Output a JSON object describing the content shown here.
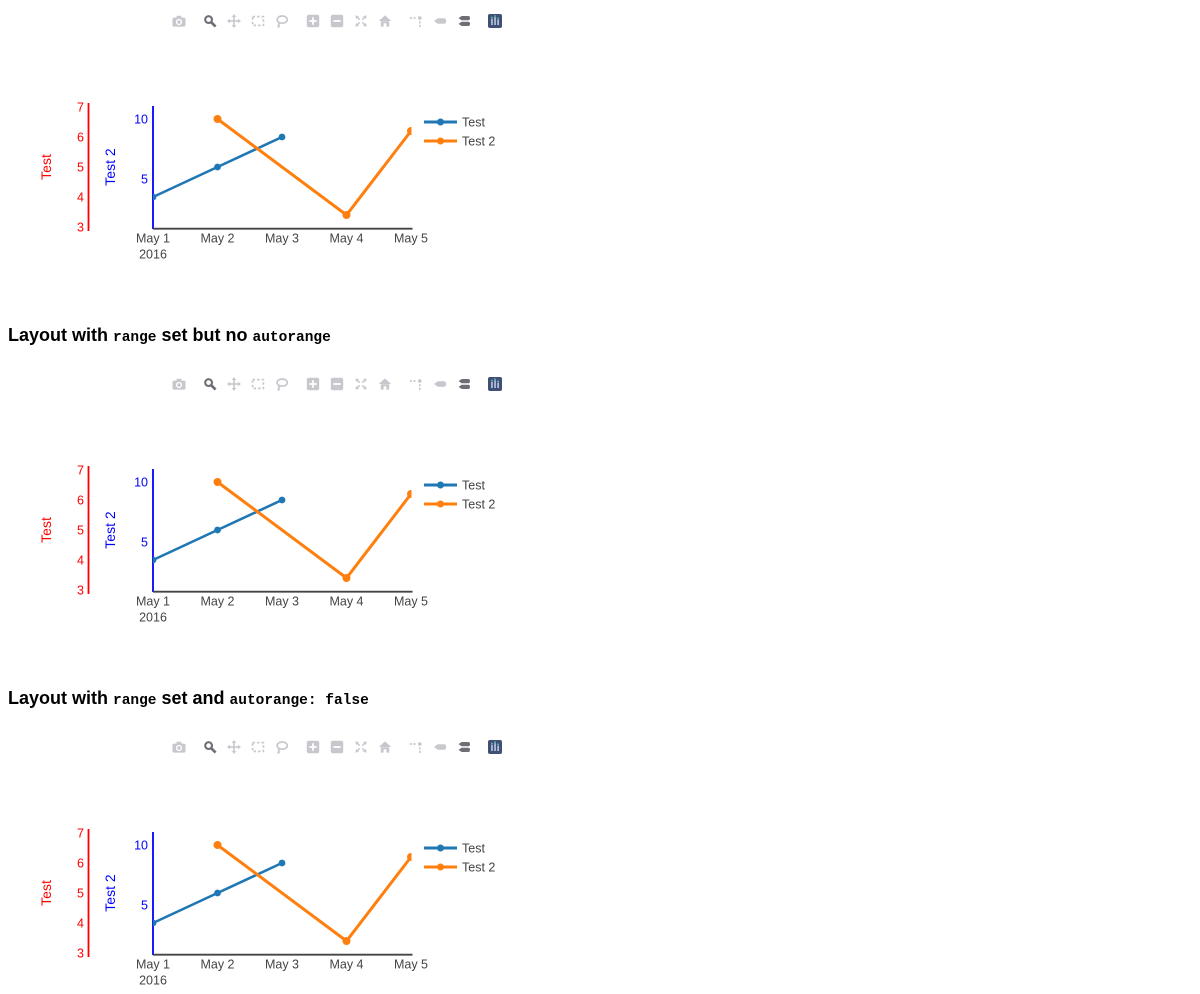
{
  "page": {
    "background": "#ffffff"
  },
  "headings": [
    {
      "pre": "Layout with ",
      "code1": "range",
      "mid": " set but no ",
      "code2": "autorange"
    },
    {
      "pre": "Layout with ",
      "code1": "range",
      "mid": " set and ",
      "code2": "autorange: false"
    }
  ],
  "modebar": {
    "colors": {
      "icon": "#c7c7cd",
      "active": "#6e6e76",
      "logo_bg": "#3f4f75",
      "logo_bar": "#b5c2dd",
      "logo_cap": "#61c0ab"
    },
    "buttons": [
      {
        "name": "camera-icon",
        "group": 0,
        "active": false
      },
      {
        "name": "zoom-icon",
        "group": 1,
        "active": true
      },
      {
        "name": "pan-icon",
        "group": 1,
        "active": false
      },
      {
        "name": "box-select-icon",
        "group": 1,
        "active": false
      },
      {
        "name": "lasso-select-icon",
        "group": 1,
        "active": false
      },
      {
        "name": "zoom-in-icon",
        "group": 2,
        "active": false
      },
      {
        "name": "zoom-out-icon",
        "group": 2,
        "active": false
      },
      {
        "name": "autoscale-icon",
        "group": 2,
        "active": false
      },
      {
        "name": "reset-axes-icon",
        "group": 2,
        "active": false
      },
      {
        "name": "toggle-spikelines-icon",
        "group": 3,
        "active": false
      },
      {
        "name": "hover-closest-icon",
        "group": 3,
        "active": false
      },
      {
        "name": "hover-compare-icon",
        "group": 3,
        "active": true
      },
      {
        "name": "plotly-logo-icon",
        "group": 4,
        "active": false
      }
    ]
  },
  "chart_data": {
    "type": "line",
    "title": "",
    "x_categories": [
      "May 1",
      "May 2",
      "May 3",
      "May 4",
      "May 5"
    ],
    "x_year_label": "2016",
    "series": [
      {
        "name": "Test",
        "color": "#1f77b4",
        "axis": "y",
        "x": [
          "May 1",
          "May 2",
          "May 3"
        ],
        "y": [
          4,
          5,
          6
        ]
      },
      {
        "name": "Test 2",
        "color": "#ff7f0e",
        "axis": "y2",
        "x": [
          "May 2",
          "May 4",
          "May 5"
        ],
        "y": [
          10,
          2,
          9
        ]
      }
    ],
    "yaxis": {
      "title": "Test",
      "color": "#ff0000",
      "ticks": [
        7,
        6,
        5,
        4,
        3
      ],
      "range": [
        2.9,
        7.2
      ]
    },
    "yaxis2": {
      "title": "Test 2",
      "color": "#0000ff",
      "ticks": [
        10,
        5
      ],
      "range": [
        0.8,
        11.0
      ]
    },
    "xaxis_color": "#444444",
    "legend": {
      "entries": [
        "Test",
        "Test 2"
      ],
      "position": "right",
      "text_color": "#444444"
    },
    "grid": false,
    "charts_on_page": 3
  }
}
